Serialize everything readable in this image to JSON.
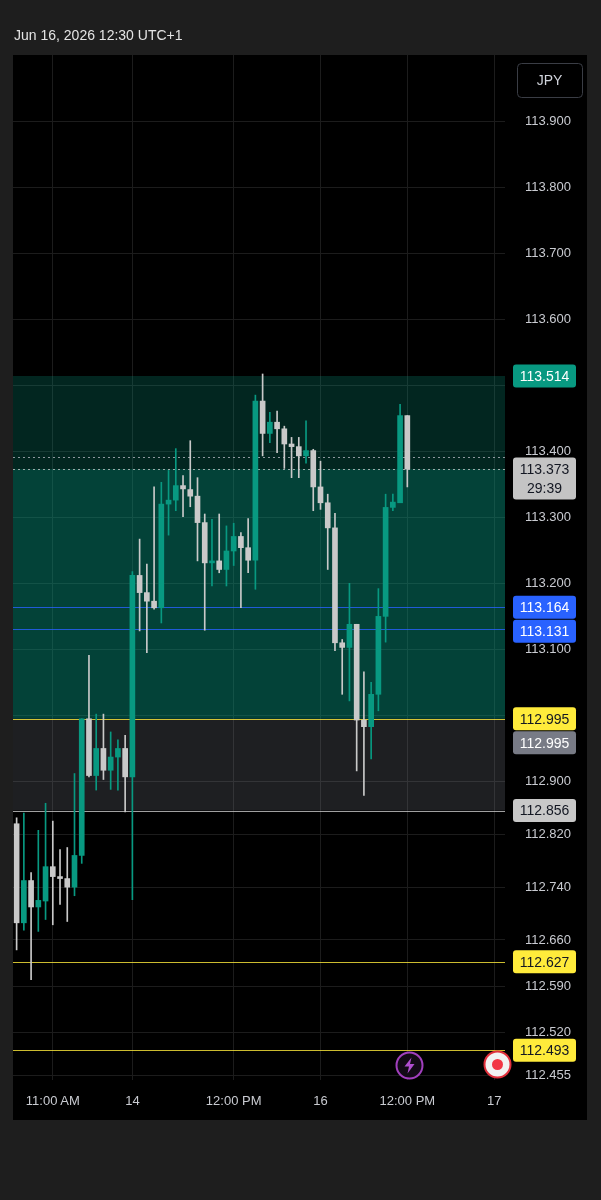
{
  "chart_data": {
    "type": "candlestick",
    "title": "Jun 16, 2026 12:30 UTC+1",
    "ylabel": "JPY",
    "categories": [
      null,
      null,
      null,
      null,
      null,
      "11:00 AM",
      null,
      null,
      null,
      null,
      null,
      null,
      null,
      null,
      null,
      null,
      "14",
      null,
      null,
      null,
      null,
      null,
      null,
      null,
      null,
      null,
      null,
      null,
      null,
      null,
      "12:00 PM",
      null,
      null,
      null,
      null,
      null,
      null,
      null,
      null,
      null,
      null,
      null,
      "16",
      null,
      null,
      null,
      null,
      null,
      null,
      null,
      null,
      null,
      null,
      null,
      "12:00 PM",
      null,
      null,
      null,
      null,
      null,
      null,
      null,
      null,
      null,
      null,
      null,
      "17",
      null
    ],
    "ohlc": [
      [
        112.836,
        112.845,
        112.645,
        112.686
      ],
      [
        112.686,
        112.852,
        112.675,
        112.75
      ],
      [
        112.75,
        112.762,
        112.6,
        112.71
      ],
      [
        112.71,
        112.826,
        112.673,
        112.72
      ],
      [
        112.719,
        112.867,
        112.691,
        112.771
      ],
      [
        112.771,
        112.84,
        112.683,
        112.756
      ],
      [
        112.756,
        112.797,
        112.714,
        112.753
      ],
      [
        112.753,
        112.8,
        112.688,
        112.74
      ],
      [
        112.74,
        112.912,
        112.727,
        112.788
      ],
      [
        112.788,
        112.995,
        112.776,
        112.995
      ],
      [
        112.995,
        113.091,
        112.907,
        112.909
      ],
      [
        112.909,
        113.002,
        112.887,
        112.95
      ],
      [
        112.95,
        113.002,
        112.903,
        112.917
      ],
      [
        112.917,
        112.975,
        112.888,
        112.937
      ],
      [
        112.937,
        112.963,
        112.887,
        112.95
      ],
      [
        112.95,
        112.97,
        112.854,
        112.907
      ],
      [
        112.907,
        113.218,
        112.721,
        113.212
      ],
      [
        113.212,
        113.267,
        113.128,
        113.186
      ],
      [
        113.186,
        113.229,
        113.095,
        113.173
      ],
      [
        113.173,
        113.346,
        113.161,
        113.163
      ],
      [
        113.163,
        113.353,
        113.14,
        113.32
      ],
      [
        113.32,
        113.371,
        113.273,
        113.326
      ],
      [
        113.326,
        113.404,
        113.31,
        113.348
      ],
      [
        113.348,
        113.363,
        113.301,
        113.343
      ],
      [
        113.342,
        113.416,
        113.316,
        113.332
      ],
      [
        113.332,
        113.36,
        113.234,
        113.292
      ],
      [
        113.292,
        113.305,
        113.129,
        113.231
      ],
      [
        113.231,
        113.297,
        113.196,
        113.234
      ],
      [
        113.234,
        113.305,
        113.216,
        113.221
      ],
      [
        113.221,
        113.287,
        113.196,
        113.249
      ],
      [
        113.249,
        113.291,
        113.227,
        113.271
      ],
      [
        113.271,
        113.277,
        113.163,
        113.254
      ],
      [
        113.254,
        113.298,
        113.216,
        113.235
      ],
      [
        113.235,
        113.485,
        113.191,
        113.476
      ],
      [
        113.476,
        113.517,
        113.393,
        113.427
      ],
      [
        113.427,
        113.459,
        113.413,
        113.444
      ],
      [
        113.444,
        113.461,
        113.398,
        113.434
      ],
      [
        113.434,
        113.438,
        113.374,
        113.411
      ],
      [
        113.411,
        113.421,
        113.36,
        113.407
      ],
      [
        113.407,
        113.421,
        113.36,
        113.393
      ],
      [
        113.393,
        113.446,
        113.382,
        113.401
      ],
      [
        113.401,
        113.403,
        113.31,
        113.346
      ],
      [
        113.346,
        113.385,
        113.312,
        113.322
      ],
      [
        113.322,
        113.335,
        113.221,
        113.284
      ],
      [
        113.284,
        113.306,
        113.098,
        113.11
      ],
      [
        113.11,
        113.115,
        113.032,
        113.103
      ],
      [
        113.103,
        113.2,
        113.022,
        113.138
      ],
      [
        113.138,
        113.138,
        112.916,
        112.993
      ],
      [
        112.993,
        113.066,
        112.879,
        112.983
      ],
      [
        112.983,
        113.05,
        112.934,
        113.032
      ],
      [
        113.032,
        113.192,
        113.007,
        113.15
      ],
      [
        113.15,
        113.335,
        113.111,
        113.315
      ],
      [
        113.315,
        113.335,
        113.31,
        113.323
      ],
      [
        113.322,
        113.471,
        113.322,
        113.454
      ],
      [
        113.454,
        113.454,
        113.346,
        113.373
      ],
      null,
      null,
      null,
      null,
      null,
      null,
      null,
      null,
      null,
      null,
      null,
      null,
      null
    ],
    "colors": [
      "#c9c9c9",
      "#089981",
      "#c9c9c9",
      "#089981",
      "#089981",
      "#c9c9c9",
      "#c9c9c9",
      "#c9c9c9",
      "#089981",
      "#089981",
      "#c9c9c9",
      "#089981",
      "#c9c9c9",
      "#089981",
      "#089981",
      "#c9c9c9",
      "#089981",
      "#c9c9c9",
      "#c9c9c9",
      "#c9c9c9",
      "#089981",
      "#089981",
      "#089981",
      "#c9c9c9",
      "#c9c9c9",
      "#c9c9c9",
      "#c9c9c9",
      "#089981",
      "#c9c9c9",
      "#089981",
      "#089981",
      "#c9c9c9",
      "#c9c9c9",
      "#089981",
      "#c9c9c9",
      "#089981",
      "#c9c9c9",
      "#c9c9c9",
      "#c9c9c9",
      "#c9c9c9",
      "#089981",
      "#c9c9c9",
      "#c9c9c9",
      "#c9c9c9",
      "#c9c9c9",
      "#c9c9c9",
      "#089981",
      "#c9c9c9",
      "#c9c9c9",
      "#089981",
      "#089981",
      "#089981",
      "#089981",
      "#089981",
      "#c9c9c9",
      null,
      null,
      null,
      null,
      null,
      null,
      null,
      null,
      null,
      null,
      null,
      null,
      null
    ],
    "ylim": [
      112.448,
      114.0
    ],
    "yticks": [
      {
        "value": 113.9,
        "label": "113.900"
      },
      {
        "value": 113.8,
        "label": "113.800"
      },
      {
        "value": 113.7,
        "label": "113.700"
      },
      {
        "value": 113.6,
        "label": "113.600"
      },
      {
        "value": 113.5,
        "label": null
      },
      {
        "value": 113.4,
        "label": "113.400"
      },
      {
        "value": 113.3,
        "label": "113.300"
      },
      {
        "value": 113.2,
        "label": "113.200"
      },
      {
        "value": 113.1,
        "label": "113.100"
      },
      {
        "value": 113.0,
        "label": null
      },
      {
        "value": 112.9,
        "label": "112.900"
      },
      {
        "value": 112.82,
        "label": "112.820"
      },
      {
        "value": 112.74,
        "label": "112.740"
      },
      {
        "value": 112.66,
        "label": "112.660"
      },
      {
        "value": 112.59,
        "label": "112.590"
      },
      {
        "value": 112.52,
        "label": "112.520"
      },
      {
        "value": 112.455,
        "label": "112.455"
      }
    ],
    "grid": true,
    "bands": [
      {
        "axis": "y",
        "from": 112.995,
        "to": 113.514,
        "label": "113.514",
        "color": "#089981"
      },
      {
        "axis": "y",
        "from": 112.995,
        "to": 113.373,
        "color": "#089981"
      },
      {
        "axis": "y",
        "from": 112.856,
        "to": 112.995,
        "label": "112.995",
        "color": "#787b86"
      }
    ],
    "ref_lines": [
      {
        "axis": "y",
        "value": 113.392,
        "color": "#b2b5be",
        "line_style": "dotted"
      },
      {
        "axis": "y",
        "value": 113.373,
        "label": "113.373",
        "color": "#c4c4c4",
        "line_style": "dotted"
      },
      {
        "axis": "y",
        "value": 113.164,
        "label": "113.164",
        "color": "#2962ff"
      },
      {
        "axis": "y",
        "value": 113.131,
        "label": "113.131",
        "color": "#2962ff"
      },
      {
        "axis": "y",
        "value": 112.995,
        "label": "112.995",
        "color": "#ffeb3b"
      },
      {
        "axis": "y",
        "value": 112.856,
        "label": "112.856",
        "color": "#c8c8c8"
      },
      {
        "axis": "y",
        "value": 112.627,
        "label": "112.627",
        "color": "#ffeb3b"
      },
      {
        "axis": "y",
        "value": 112.493,
        "label": "112.493",
        "color": "#ffeb3b"
      }
    ],
    "annotations": [
      "29:39"
    ]
  }
}
